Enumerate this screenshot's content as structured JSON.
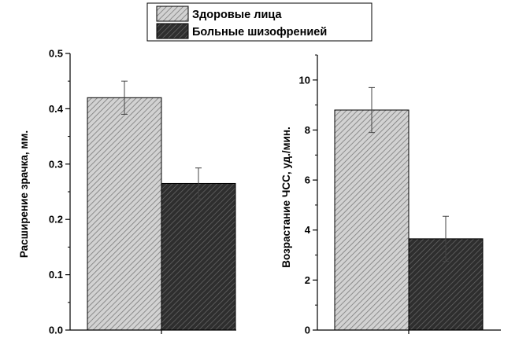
{
  "legend": {
    "entries": [
      {
        "label": "Здоровые лица",
        "color": "#bdbdbd"
      },
      {
        "label": "Больные шизофренией",
        "color": "#3a3a3a"
      }
    ]
  },
  "chart_data": [
    {
      "type": "bar",
      "title": "",
      "xlabel": "",
      "ylabel": "Расширение зрачка, мм.",
      "ylim": [
        0,
        0.5
      ],
      "yticks": [
        "0.0",
        "0.1",
        "0.2",
        "0.3",
        "0.4",
        "0.5"
      ],
      "categories": [
        "Здоровые лица",
        "Больные шизофренией"
      ],
      "values": [
        0.42,
        0.265
      ],
      "errors": [
        0.03,
        0.028
      ],
      "grid": false,
      "legend": "top-center"
    },
    {
      "type": "bar",
      "title": "",
      "xlabel": "",
      "ylabel": "Возрастание ЧСС, уд./мин.",
      "ylim": [
        0,
        11
      ],
      "yticks": [
        "0",
        "2",
        "4",
        "6",
        "8",
        "10"
      ],
      "categories": [
        "Здоровые лица",
        "Больные шизофренией"
      ],
      "values": [
        8.8,
        3.65
      ],
      "errors": [
        0.9,
        0.9
      ],
      "grid": false,
      "legend": "top-center"
    }
  ]
}
